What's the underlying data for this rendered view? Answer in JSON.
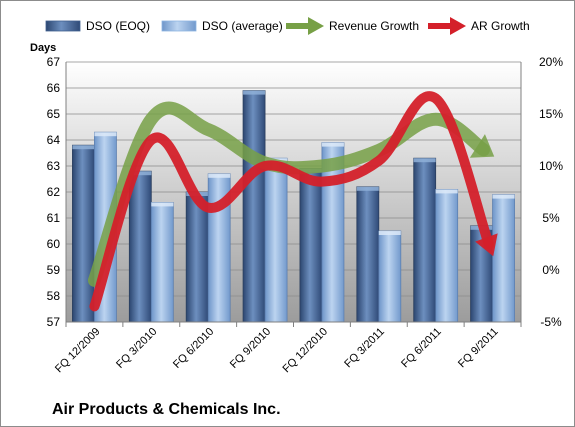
{
  "chart_data": {
    "type": "bar",
    "title": "Air Products & Chemicals Inc.",
    "ylabel": "Days",
    "categories": [
      "FQ 12/2009",
      "FQ 3/2010",
      "FQ 6/2010",
      "FQ 9/2010",
      "FQ 12/2010",
      "FQ 3/2011",
      "FQ 6/2011",
      "FQ 9/2011"
    ],
    "ylim": [
      57,
      67
    ],
    "y_ticks": [
      "57",
      "58",
      "59",
      "60",
      "61",
      "62",
      "63",
      "64",
      "65",
      "66",
      "67"
    ],
    "y2lim": [
      -5,
      20
    ],
    "y2_ticks": [
      "-5%",
      "0%",
      "5%",
      "10%",
      "15%",
      "20%"
    ],
    "series": [
      {
        "name": "DSO (EOQ)",
        "type": "bar",
        "axis": "left",
        "color": "#3f5f8f",
        "values": [
          63.8,
          62.8,
          62.0,
          65.9,
          62.9,
          62.2,
          63.3,
          60.7
        ]
      },
      {
        "name": "DSO (average)",
        "type": "bar",
        "axis": "left",
        "color": "#8db4e2",
        "values": [
          64.3,
          61.6,
          62.7,
          63.3,
          63.9,
          60.5,
          62.1,
          61.9
        ]
      },
      {
        "name": "Revenue Growth",
        "type": "line",
        "axis": "right",
        "color": "#77a046",
        "values": [
          -1.0,
          14.5,
          13.5,
          10.3,
          10.0,
          11.5,
          14.5,
          11.0
        ]
      },
      {
        "name": "AR Growth",
        "type": "line",
        "axis": "right",
        "color": "#d4202a",
        "values": [
          -3.5,
          12.5,
          6.0,
          10.0,
          8.5,
          10.5,
          16.5,
          1.5
        ]
      }
    ],
    "grid": true,
    "legend": "top"
  }
}
